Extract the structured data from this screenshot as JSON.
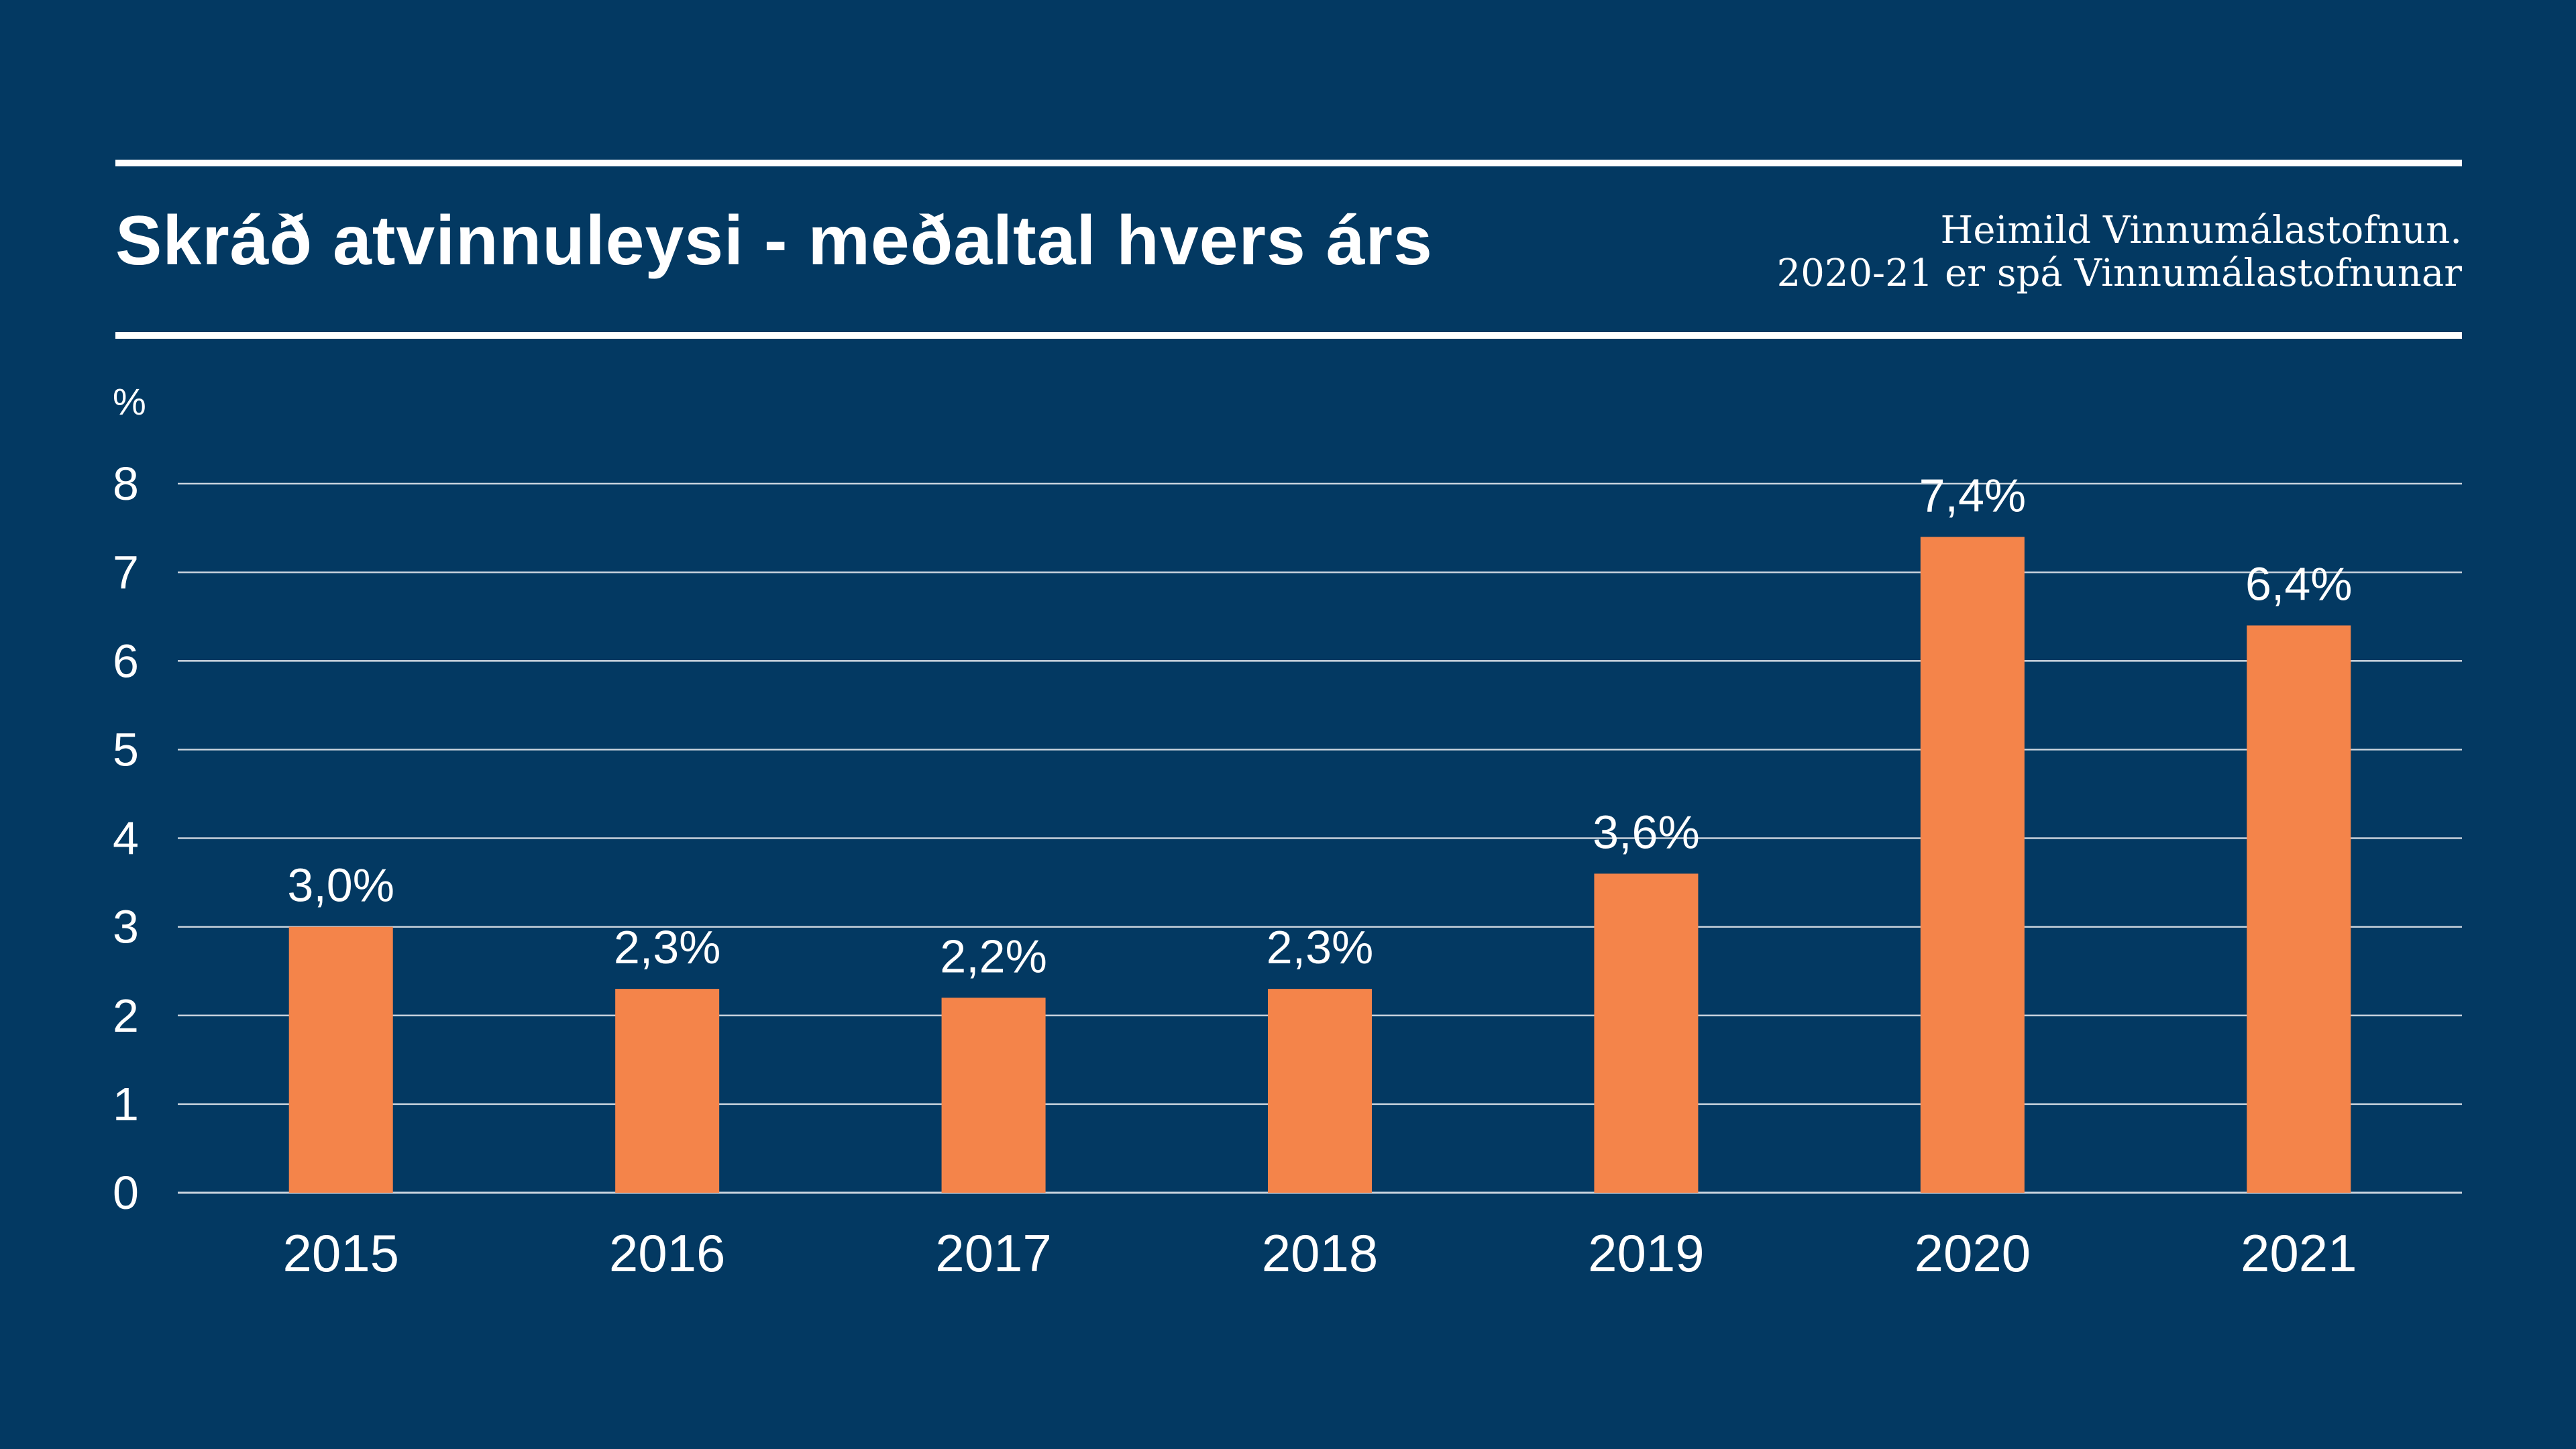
{
  "header": {
    "title": "Skráð atvinnuleysi - meðaltal hvers árs",
    "source_line1": "Heimild Vinnumálastofnun.",
    "source_line2": "2020-21 er spá Vinnumálastofnunar"
  },
  "colors": {
    "background": "#033962",
    "bar": "#F4844A",
    "text": "#FFFFFF",
    "grid": "#C9D3DD"
  },
  "chart_data": {
    "type": "bar",
    "title": "Skráð atvinnuleysi - meðaltal hvers árs",
    "xlabel": "",
    "ylabel": "%",
    "ylim": [
      0,
      8
    ],
    "yticks": [
      "0",
      "1",
      "2",
      "3",
      "4",
      "5",
      "6",
      "7",
      "8"
    ],
    "grid": true,
    "legend": "none",
    "categories": [
      "2015",
      "2016",
      "2017",
      "2018",
      "2019",
      "2020",
      "2021"
    ],
    "values": [
      3.0,
      2.3,
      2.2,
      2.3,
      3.6,
      7.4,
      6.4
    ],
    "data_labels": [
      "3,0%",
      "2,3%",
      "2,2%",
      "2,3%",
      "3,6%",
      "7,4%",
      "6,4%"
    ]
  }
}
